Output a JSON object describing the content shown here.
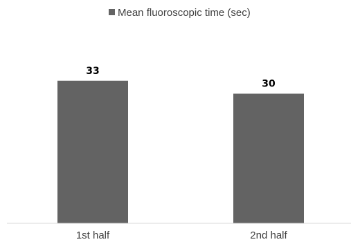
{
  "chart_data": {
    "type": "bar",
    "categories": [
      "1st half",
      "2nd half"
    ],
    "series": [
      {
        "name": "Mean fluoroscopic time (sec)",
        "values": [
          33,
          30
        ],
        "color": "#636363"
      }
    ],
    "data_labels": [
      "33",
      "30"
    ],
    "ylim": [
      0,
      40
    ],
    "grid": false,
    "legend_position": "top",
    "title": "",
    "xlabel": "",
    "ylabel": ""
  }
}
